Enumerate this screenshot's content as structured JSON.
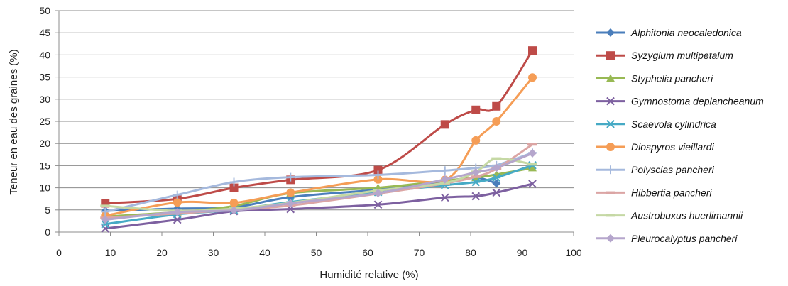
{
  "chart_data": {
    "type": "line",
    "title": "",
    "xlabel": "Humidité relative (%)",
    "ylabel": "Teneur en eau des graines (%)",
    "xlim": [
      0,
      100
    ],
    "ylim": [
      0,
      50
    ],
    "x_ticks": [
      0,
      10,
      20,
      30,
      40,
      50,
      60,
      70,
      80,
      90,
      100
    ],
    "y_ticks": [
      0,
      5,
      10,
      15,
      20,
      25,
      30,
      35,
      40,
      45,
      50
    ],
    "grid": "horizontal",
    "legend_position": "right",
    "series": [
      {
        "name": "Alphitonia neocaledonica",
        "color": "#4a7ebb",
        "marker": "diamond",
        "x": [
          9,
          23,
          34,
          45,
          62,
          75,
          81,
          85
        ],
        "y": [
          4.8,
          5.3,
          5.6,
          7.9,
          9.6,
          11.5,
          12.3,
          11.0
        ]
      },
      {
        "name": "Syzygium multipetalum",
        "color": "#be4b48",
        "marker": "square",
        "x": [
          9,
          23,
          34,
          45,
          62,
          75,
          81,
          85,
          92
        ],
        "y": [
          6.5,
          7.5,
          10.0,
          11.8,
          14.0,
          24.3,
          27.6,
          28.4,
          41.0
        ]
      },
      {
        "name": "Styphelia pancheri",
        "color": "#98b954",
        "marker": "triangle",
        "x": [
          9,
          23,
          34,
          45,
          62,
          75,
          81,
          85,
          92
        ],
        "y": [
          3.5,
          4.5,
          5.9,
          8.8,
          10.0,
          11.6,
          12.3,
          13.0,
          14.5
        ]
      },
      {
        "name": "Gymnostoma deplancheanum",
        "color": "#7d60a0",
        "marker": "x",
        "x": [
          9,
          23,
          34,
          45,
          62,
          75,
          81,
          85,
          92
        ],
        "y": [
          0.8,
          2.8,
          4.7,
          5.2,
          6.2,
          7.8,
          8.1,
          8.9,
          10.9
        ]
      },
      {
        "name": "Scaevola cylindrica",
        "color": "#46aac5",
        "marker": "asterisk",
        "x": [
          9,
          23,
          34,
          45,
          62,
          75,
          81,
          85,
          92
        ],
        "y": [
          1.8,
          4.0,
          5.0,
          6.8,
          9.0,
          10.6,
          11.3,
          12.3,
          15.1
        ]
      },
      {
        "name": "Diospyros vieillardi",
        "color": "#f59d56",
        "marker": "circle",
        "x": [
          9,
          23,
          34,
          45,
          62,
          75,
          81,
          85,
          92
        ],
        "y": [
          3.7,
          6.7,
          6.6,
          8.9,
          11.9,
          11.8,
          20.7,
          25.0,
          34.9
        ]
      },
      {
        "name": "Polyscias pancheri",
        "color": "#a5b9dd",
        "marker": "plus",
        "x": [
          9,
          23,
          34,
          45,
          62,
          75,
          81,
          85,
          92
        ],
        "y": [
          4.6,
          8.4,
          11.3,
          12.4,
          12.9,
          13.9,
          14.5,
          15.1,
          17.9
        ]
      },
      {
        "name": "Hibbertia pancheri",
        "color": "#dba5a4",
        "marker": "dash",
        "x": [
          9,
          23,
          34,
          45,
          62,
          75,
          81,
          85,
          92
        ],
        "y": [
          3.2,
          4.2,
          5.0,
          6.0,
          8.7,
          11.0,
          12.5,
          14.3,
          19.8
        ]
      },
      {
        "name": "Austrobuxus huerlimannii",
        "color": "#c5d8a4",
        "marker": "dash",
        "x": [
          9,
          23,
          34,
          45,
          62,
          75,
          81,
          85,
          92
        ],
        "y": [
          5.9,
          4.8,
          5.3,
          6.6,
          9.4,
          11.1,
          13.6,
          16.6,
          15.3
        ]
      },
      {
        "name": "Pleurocalyptus pancheri",
        "color": "#b5a6cc",
        "marker": "diamond",
        "x": [
          9,
          23,
          34,
          45,
          62,
          75,
          81,
          85,
          92
        ],
        "y": [
          2.8,
          4.5,
          4.9,
          6.5,
          8.8,
          11.9,
          13.5,
          14.5,
          17.8
        ]
      }
    ]
  }
}
